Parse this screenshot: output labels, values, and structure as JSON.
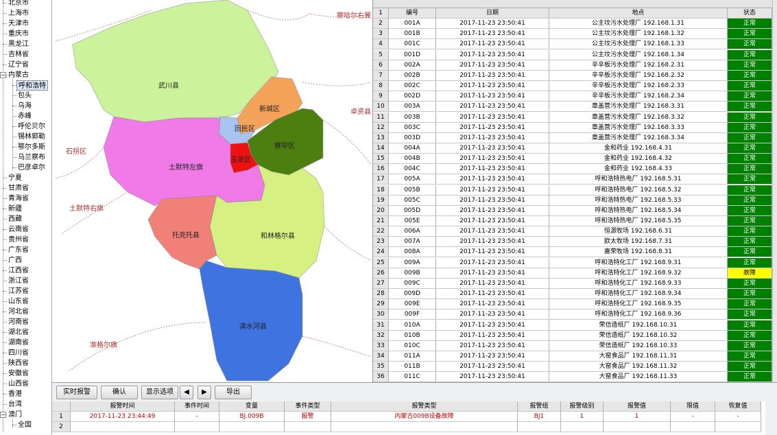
{
  "tree": [
    {
      "label": "北京市"
    },
    {
      "label": "上海市"
    },
    {
      "label": "天津市"
    },
    {
      "label": "重庆市"
    },
    {
      "label": "黑龙江"
    },
    {
      "label": "吉林省"
    },
    {
      "label": "辽宁省"
    },
    {
      "label": "内蒙古",
      "children": [
        {
          "label": "呼和浩特",
          "selected": true
        },
        {
          "label": "包头"
        },
        {
          "label": "乌海"
        },
        {
          "label": "赤峰"
        },
        {
          "label": "呼伦贝尔"
        },
        {
          "label": "锡林郭勒"
        },
        {
          "label": "鄂尔多斯"
        },
        {
          "label": "乌兰察布"
        },
        {
          "label": "巴彦卓尔"
        }
      ]
    },
    {
      "label": "宁夏"
    },
    {
      "label": "甘肃省"
    },
    {
      "label": "青海省"
    },
    {
      "label": "新疆"
    },
    {
      "label": "西藏"
    },
    {
      "label": "云南省"
    },
    {
      "label": "贵州省"
    },
    {
      "label": "广东省"
    },
    {
      "label": "广西"
    },
    {
      "label": "江西省"
    },
    {
      "label": "浙江省"
    },
    {
      "label": "江苏省"
    },
    {
      "label": "山东省"
    },
    {
      "label": "河北省"
    },
    {
      "label": "河南省"
    },
    {
      "label": "湖北省"
    },
    {
      "label": "湖南省"
    },
    {
      "label": "四川省"
    },
    {
      "label": "陕西省"
    },
    {
      "label": "安徽省"
    },
    {
      "label": "山西省"
    },
    {
      "label": "香港"
    },
    {
      "label": "台湾"
    },
    {
      "label": "澳门",
      "children": [
        {
          "label": "全国"
        }
      ]
    }
  ],
  "map": {
    "regions": [
      "武川县",
      "新城区",
      "回民区",
      "赛罕区",
      "玉泉区",
      "土默特左旗",
      "托克托县",
      "和林格尔县",
      "清水河县"
    ],
    "outer": [
      "察哈尔右翼",
      "卓资县",
      "石拐区",
      "土默特右旗",
      "准格尔旗"
    ]
  },
  "table": {
    "header": [
      "1",
      "编号",
      "日期",
      "地点",
      "状态"
    ],
    "rows": [
      [
        "2",
        "001A",
        "2017-11-23 23:50:41",
        "公主坟污水处理厂 192.168.1.31",
        "正常",
        "#008000"
      ],
      [
        "3",
        "001B",
        "2017-11-23 23:50:41",
        "公主坟污水处理厂 192.168.1.32",
        "正常",
        "#008000"
      ],
      [
        "4",
        "001C",
        "2017-11-23 23:50:41",
        "公主坟污水处理厂 192.168.1.33",
        "正常",
        "#008000"
      ],
      [
        "5",
        "001D",
        "2017-11-23 23:50:41",
        "公主坟污水处理厂 192.168.1.34",
        "正常",
        "#008000"
      ],
      [
        "6",
        "002A",
        "2017-11-23 23:50:41",
        "辛辛板污水处理厂 192.168.2.31",
        "正常",
        "#008000"
      ],
      [
        "7",
        "002B",
        "2017-11-23 23:50:41",
        "辛辛板污水处理厂 192.168.2.32",
        "正常",
        "#008000"
      ],
      [
        "8",
        "002C",
        "2017-11-23 23:50:41",
        "辛辛板污水处理厂 192.168.2.33",
        "正常",
        "#008000"
      ],
      [
        "9",
        "002D",
        "2017-11-23 23:50:41",
        "辛辛板污水处理厂 192.168.2.34",
        "正常",
        "#008000"
      ],
      [
        "10",
        "003A",
        "2017-11-23 23:50:41",
        "章盖营污水处理厂 192.168.3.31",
        "正常",
        "#008000"
      ],
      [
        "11",
        "003B",
        "2017-11-23 23:50:41",
        "章盖营污水处理厂 192.168.3.32",
        "正常",
        "#008000"
      ],
      [
        "12",
        "003C",
        "2017-11-23 23:50:41",
        "章盖营污水处理厂 192.168.3.33",
        "正常",
        "#008000"
      ],
      [
        "13",
        "003D",
        "2017-11-23 23:50:41",
        "章盖营污水处理厂 192.168.3.34",
        "正常",
        "#008000"
      ],
      [
        "14",
        "004A",
        "2017-11-23 23:50:41",
        "金和药业 192.168.4.31",
        "正常",
        "#008000"
      ],
      [
        "15",
        "004B",
        "2017-11-23 23:50:41",
        "金和药业 192.168.4.32",
        "正常",
        "#008000"
      ],
      [
        "16",
        "004C",
        "2017-11-23 23:50:41",
        "金和药业 192.168.4.33",
        "正常",
        "#008000"
      ],
      [
        "17",
        "005A",
        "2017-11-23 23:50:41",
        "呼和浩特热电厂 192.168.5.31",
        "正常",
        "#008000"
      ],
      [
        "18",
        "005B",
        "2017-11-23 23:50:41",
        "呼和浩特热电厂 192.168.5.32",
        "正常",
        "#008000"
      ],
      [
        "19",
        "005C",
        "2017-11-23 23:50:41",
        "呼和浩特热电厂 192.168.5.33",
        "正常",
        "#008000"
      ],
      [
        "20",
        "005D",
        "2017-11-23 23:50:41",
        "呼和浩特热电厂 192.168.5.34",
        "正常",
        "#008000"
      ],
      [
        "21",
        "005E",
        "2017-11-23 23:50:41",
        "呼和浩特热电厂 192.168.5.35",
        "正常",
        "#008000"
      ],
      [
        "22",
        "006A",
        "2017-11-23 23:50:41",
        "恒源牧场 192.168.6.31",
        "正常",
        "#008000"
      ],
      [
        "23",
        "007A",
        "2017-11-23 23:50:41",
        "欧太牧场 192.168.7.31",
        "正常",
        "#008000"
      ],
      [
        "24",
        "008A",
        "2017-11-23 23:50:41",
        "嘉荣牧场 192.168.8.31",
        "正常",
        "#008000"
      ],
      [
        "25",
        "009A",
        "2017-11-23 23:50:41",
        "呼和浩特化工厂 192.168.9.31",
        "正常",
        "#008000"
      ],
      [
        "26",
        "009B",
        "2017-11-23 23:50:41",
        "呼和浩特化工厂 192.168.9.32",
        "故障",
        "#ffff00"
      ],
      [
        "27",
        "009C",
        "2017-11-23 23:50:41",
        "呼和浩特化工厂 192.168.9.33",
        "正常",
        "#008000"
      ],
      [
        "28",
        "009D",
        "2017-11-23 23:50:41",
        "呼和浩特化工厂 192.168.9.34",
        "正常",
        "#008000"
      ],
      [
        "29",
        "009E",
        "2017-11-23 23:50:41",
        "呼和浩特化工厂 192.168.9.35",
        "正常",
        "#008000"
      ],
      [
        "30",
        "009F",
        "2017-11-23 23:50:41",
        "呼和浩特化工厂 192.168.9.36",
        "正常",
        "#008000"
      ],
      [
        "31",
        "010A",
        "2017-11-23 23:50:41",
        "荣信造纸厂 192.168.10.31",
        "正常",
        "#008000"
      ],
      [
        "32",
        "010B",
        "2017-11-23 23:50:41",
        "荣信造纸厂 192.168.10.32",
        "正常",
        "#008000"
      ],
      [
        "33",
        "010C",
        "2017-11-23 23:50:41",
        "荣信造纸厂 192.168.10.33",
        "正常",
        "#008000"
      ],
      [
        "34",
        "011A",
        "2017-11-23 23:50:41",
        "大窑食品厂 192.168.11.31",
        "正常",
        "#008000"
      ],
      [
        "35",
        "011B",
        "2017-11-23 23:50:41",
        "大窑食品厂 192.168.11.32",
        "正常",
        "#008000"
      ],
      [
        "36",
        "011C",
        "2017-11-23 23:50:41",
        "大窑食品厂 192.168.11.33",
        "正常",
        "#008000"
      ]
    ]
  },
  "toolbar": {
    "buttons": [
      "实时报警",
      "确认",
      "显示选项",
      "导出"
    ]
  },
  "alarms": {
    "columns": [
      "报警时间",
      "事件时间",
      "变量",
      "事件类型",
      "报警类型",
      "报警组",
      "报警级别",
      "报警值",
      "限值",
      "恢复值"
    ],
    "rows": [
      [
        "1",
        "2017-11-23 23:44:49",
        "-",
        "BJ.009B",
        "报警",
        "内蒙古009B设备故障",
        "BJ1",
        "1",
        "1",
        "-",
        "-"
      ],
      [
        "2"
      ]
    ]
  }
}
